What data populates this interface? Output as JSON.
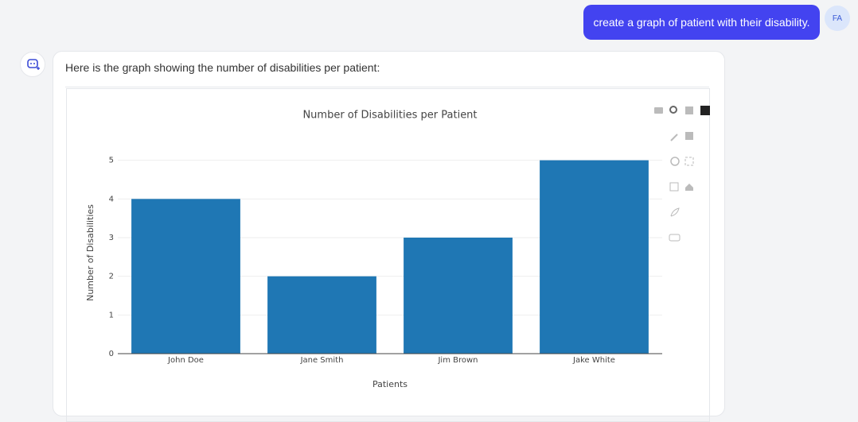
{
  "user_message": "create a graph of patient with their disability.",
  "avatar": "FA",
  "response_text": "Here is the graph showing the number of disabilities per patient:",
  "chart_data": {
    "type": "bar",
    "title": "Number of Disabilities per Patient",
    "x_label": "Patients",
    "y_label": "Number of Disabilities",
    "categories": [
      "John Doe",
      "Jane Smith",
      "Jim Brown",
      "Jake White"
    ],
    "values": [
      4,
      2,
      3,
      5
    ],
    "color": "#1f77b4",
    "ylim": [
      0,
      5.26
    ],
    "yticks": [
      0,
      1,
      2,
      3,
      4,
      5
    ],
    "grid": true
  }
}
